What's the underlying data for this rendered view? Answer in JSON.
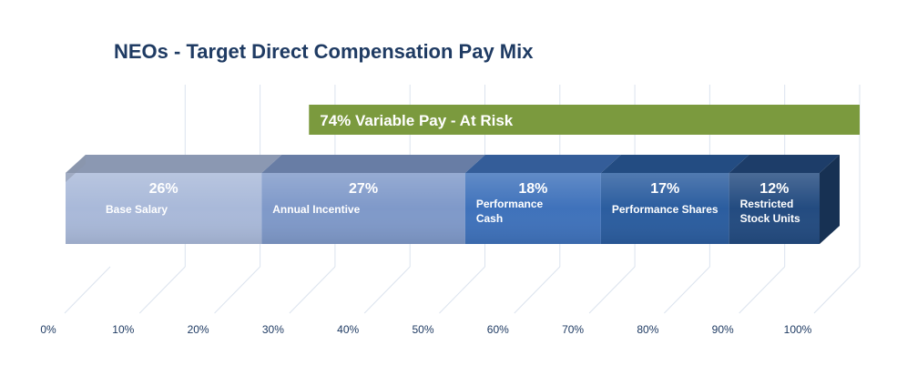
{
  "chart_data": {
    "type": "bar",
    "orientation": "horizontal-stacked",
    "title": "NEOs - Target Direct Compensation Pay Mix",
    "x_ticks": [
      "0%",
      "10%",
      "20%",
      "30%",
      "40%",
      "50%",
      "60%",
      "70%",
      "80%",
      "90%",
      "100%"
    ],
    "xlim": [
      0,
      100
    ],
    "grid": true,
    "segments": [
      {
        "value": 26,
        "value_label": "26%",
        "label": [
          "Base Salary"
        ],
        "color": "#a9b9d9"
      },
      {
        "value": 27,
        "value_label": "27%",
        "label": [
          "Annual Incentive"
        ],
        "color": "#7f99c9"
      },
      {
        "value": 18,
        "value_label": "18%",
        "label": [
          "Performance",
          "Cash"
        ],
        "color": "#3f72bb"
      },
      {
        "value": 17,
        "value_label": "17%",
        "label": [
          "Performance Shares"
        ],
        "color": "#2b5d9f"
      },
      {
        "value": 12,
        "value_label": "12%",
        "label": [
          "Restricted",
          "Stock Units"
        ],
        "color": "#234b80"
      }
    ],
    "annotation": {
      "text": "74% Variable Pay - At Risk",
      "from": 26,
      "to": 100,
      "color": "#7b9a3e"
    }
  }
}
